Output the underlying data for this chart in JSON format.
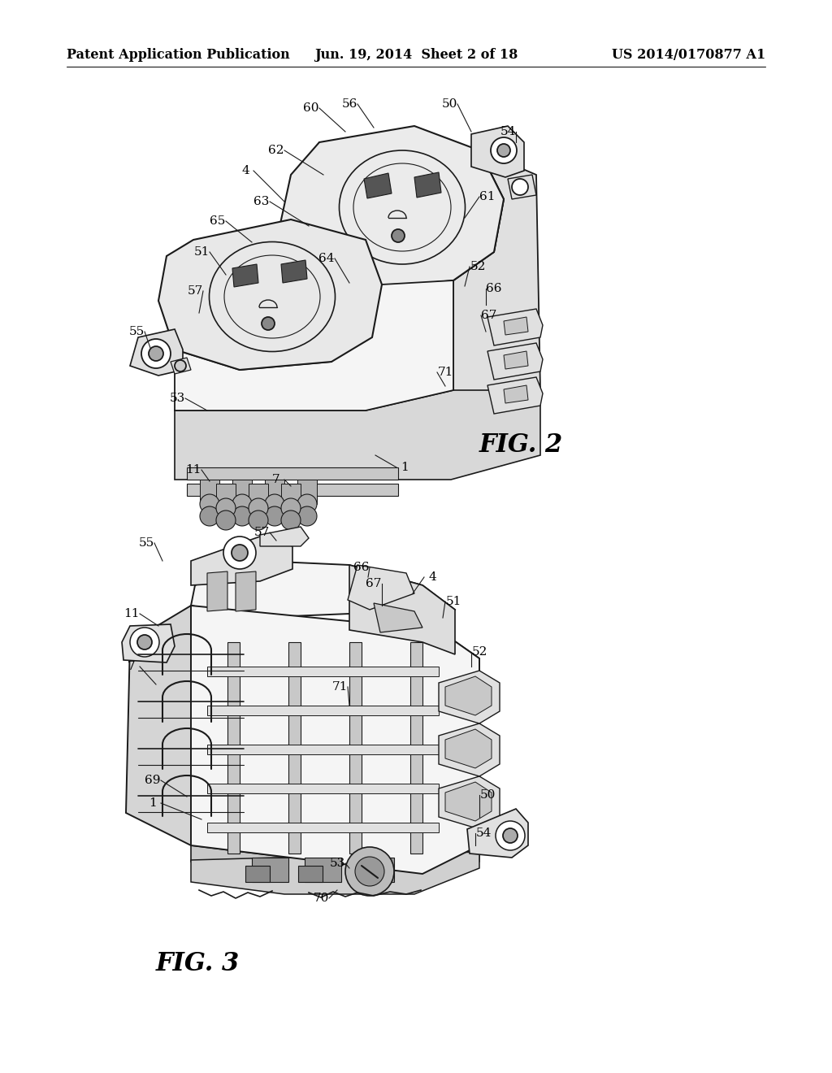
{
  "background_color": "#ffffff",
  "header_left": "Patent Application Publication",
  "header_center": "Jun. 19, 2014  Sheet 2 of 18",
  "header_right": "US 2014/0170877 A1",
  "fig2_label": "FIG. 2",
  "fig3_label": "FIG. 3",
  "header_fontsize": 11.5,
  "fig_label_fontsize": 22,
  "annotation_fontsize": 11,
  "line_color": "#1a1a1a",
  "fill_light": "#f5f5f5",
  "fill_mid": "#e0e0e0",
  "fill_dark": "#c8c8c8",
  "fill_darker": "#b0b0b0",
  "fill_white": "#ffffff"
}
